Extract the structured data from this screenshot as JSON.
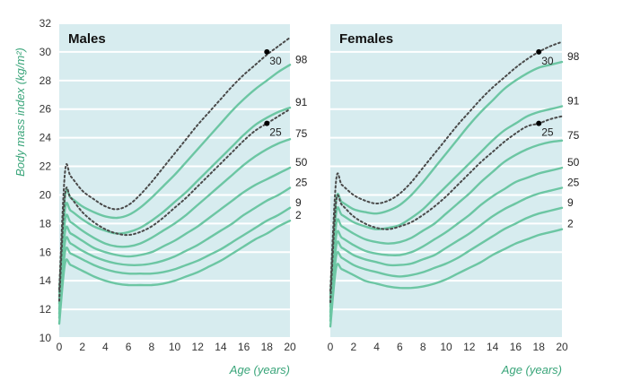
{
  "chart_data": {
    "type": "line",
    "ylabel": "Body mass index (kg/m²)",
    "ylim": [
      10,
      32
    ],
    "yticks": [
      "10",
      "12",
      "14",
      "16",
      "18",
      "20",
      "22",
      "24",
      "26",
      "28",
      "30",
      "32"
    ],
    "xlim": [
      0,
      20
    ],
    "grid": true,
    "colors": {
      "percentile": "#6cc6a3",
      "cutoff": "#4a4a4a",
      "background": "#d7ecef",
      "label": "#3aa57a"
    },
    "panels": [
      {
        "title": "Males",
        "xlabel": "Age (years)",
        "xticks": [
          "0",
          "2",
          "4",
          "6",
          "8",
          "10",
          "12",
          "14",
          "16",
          "18",
          "20"
        ],
        "x": [
          0,
          0.5,
          1,
          2,
          3,
          4,
          5,
          6,
          7,
          8,
          9,
          10,
          11,
          12,
          13,
          14,
          15,
          16,
          17,
          18,
          19,
          20
        ],
        "series": [
          {
            "name": "98",
            "values": [
              13.2,
              19.9,
              19.8,
              19.2,
              18.8,
              18.5,
              18.4,
              18.6,
              19.1,
              19.8,
              20.6,
              21.4,
              22.3,
              23.2,
              24.1,
              25.0,
              25.9,
              26.7,
              27.4,
              28.0,
              28.6,
              29.1
            ]
          },
          {
            "name": "91",
            "values": [
              12.8,
              19.0,
              18.9,
              18.3,
              17.8,
              17.5,
              17.3,
              17.4,
              17.7,
              18.2,
              18.8,
              19.5,
              20.2,
              21.0,
              21.8,
              22.6,
              23.4,
              24.2,
              24.9,
              25.4,
              25.8,
              26.1
            ]
          },
          {
            "name": "75",
            "values": [
              12.4,
              18.2,
              18.1,
              17.5,
              17.0,
              16.6,
              16.4,
              16.4,
              16.6,
              17.0,
              17.5,
              18.0,
              18.6,
              19.3,
              20.0,
              20.7,
              21.4,
              22.1,
              22.7,
              23.2,
              23.6,
              23.9
            ]
          },
          {
            "name": "50",
            "values": [
              12.0,
              17.4,
              17.3,
              16.8,
              16.3,
              16.0,
              15.8,
              15.7,
              15.8,
              16.0,
              16.4,
              16.8,
              17.3,
              17.8,
              18.4,
              19.0,
              19.6,
              20.2,
              20.7,
              21.1,
              21.5,
              21.9
            ]
          },
          {
            "name": "25",
            "values": [
              11.7,
              16.7,
              16.6,
              16.1,
              15.7,
              15.4,
              15.2,
              15.1,
              15.1,
              15.2,
              15.4,
              15.7,
              16.1,
              16.5,
              17.0,
              17.5,
              18.0,
              18.6,
              19.1,
              19.6,
              20.0,
              20.5
            ]
          },
          {
            "name": "9",
            "values": [
              11.4,
              16.0,
              15.9,
              15.5,
              15.1,
              14.8,
              14.6,
              14.5,
              14.5,
              14.5,
              14.6,
              14.8,
              15.1,
              15.4,
              15.8,
              16.2,
              16.7,
              17.2,
              17.7,
              18.2,
              18.6,
              19.1
            ]
          },
          {
            "name": "2",
            "values": [
              11.0,
              15.2,
              15.1,
              14.7,
              14.3,
              14.0,
              13.8,
              13.7,
              13.7,
              13.7,
              13.8,
              14.0,
              14.3,
              14.6,
              15.0,
              15.4,
              15.9,
              16.4,
              16.9,
              17.3,
              17.8,
              18.2
            ]
          }
        ],
        "cutoffs": [
          {
            "name": "30",
            "marker_x": 18,
            "marker_y": 30,
            "values": [
              13.4,
              21.6,
              21.3,
              20.3,
              19.7,
              19.2,
              19.0,
              19.3,
              20.0,
              20.9,
              21.9,
              22.9,
              23.9,
              24.9,
              25.8,
              26.7,
              27.6,
              28.4,
              29.1,
              29.8,
              30.4,
              31.0
            ]
          },
          {
            "name": "25",
            "marker_x": 18,
            "marker_y": 25,
            "values": [
              12.6,
              20.0,
              19.8,
              18.8,
              18.1,
              17.6,
              17.3,
              17.2,
              17.4,
              17.8,
              18.4,
              19.1,
              19.8,
              20.6,
              21.4,
              22.2,
              23.0,
              23.8,
              24.5,
              25.0,
              25.5,
              26.0
            ]
          }
        ],
        "label_order": [
          "98",
          "91",
          "75",
          "50",
          "25",
          "9",
          "2"
        ]
      },
      {
        "title": "Females",
        "xlabel": "Age (years)",
        "xticks": [
          "0",
          "2",
          "4",
          "6",
          "8",
          "10",
          "12",
          "14",
          "16",
          "18",
          "20"
        ],
        "x": [
          0,
          0.5,
          1,
          2,
          3,
          4,
          5,
          6,
          7,
          8,
          9,
          10,
          11,
          12,
          13,
          14,
          15,
          16,
          17,
          18,
          19,
          20
        ],
        "series": [
          {
            "name": "98",
            "values": [
              13.0,
              19.6,
              19.5,
              19.0,
              18.8,
              18.7,
              18.9,
              19.3,
              20.0,
              20.9,
              21.9,
              22.9,
              23.9,
              24.9,
              25.8,
              26.6,
              27.4,
              28.0,
              28.5,
              28.9,
              29.1,
              29.3
            ]
          },
          {
            "name": "91",
            "values": [
              12.6,
              18.7,
              18.6,
              18.1,
              17.8,
              17.6,
              17.7,
              17.9,
              18.4,
              19.0,
              19.8,
              20.6,
              21.4,
              22.2,
              23.0,
              23.8,
              24.5,
              25.0,
              25.5,
              25.8,
              26.0,
              26.2
            ]
          },
          {
            "name": "75",
            "values": [
              12.2,
              17.9,
              17.8,
              17.3,
              16.9,
              16.7,
              16.6,
              16.7,
              17.0,
              17.5,
              18.0,
              18.7,
              19.4,
              20.1,
              20.9,
              21.6,
              22.3,
              22.8,
              23.2,
              23.5,
              23.7,
              23.8
            ]
          },
          {
            "name": "50",
            "values": [
              11.8,
              17.1,
              17.0,
              16.5,
              16.1,
              15.9,
              15.8,
              15.8,
              16.0,
              16.4,
              16.9,
              17.4,
              18.0,
              18.6,
              19.3,
              19.9,
              20.4,
              20.9,
              21.2,
              21.5,
              21.7,
              21.9
            ]
          },
          {
            "name": "25",
            "values": [
              11.5,
              16.4,
              16.3,
              15.8,
              15.5,
              15.3,
              15.1,
              15.1,
              15.2,
              15.5,
              15.8,
              16.3,
              16.8,
              17.3,
              17.9,
              18.5,
              19.0,
              19.4,
              19.8,
              20.1,
              20.3,
              20.5
            ]
          },
          {
            "name": "9",
            "values": [
              11.2,
              15.7,
              15.6,
              15.1,
              14.8,
              14.6,
              14.4,
              14.3,
              14.4,
              14.6,
              14.9,
              15.2,
              15.6,
              16.1,
              16.6,
              17.1,
              17.6,
              18.0,
              18.4,
              18.7,
              18.9,
              19.1
            ]
          },
          {
            "name": "2",
            "values": [
              10.8,
              14.9,
              14.8,
              14.4,
              14.0,
              13.8,
              13.6,
              13.5,
              13.5,
              13.6,
              13.8,
              14.1,
              14.5,
              14.9,
              15.3,
              15.8,
              16.2,
              16.6,
              16.9,
              17.2,
              17.4,
              17.6
            ]
          }
        ],
        "cutoffs": [
          {
            "name": "30",
            "marker_x": 18,
            "marker_y": 30,
            "values": [
              13.3,
              21.0,
              20.7,
              20.0,
              19.6,
              19.4,
              19.6,
              20.1,
              20.9,
              21.9,
              22.9,
              23.9,
              24.9,
              25.8,
              26.7,
              27.5,
              28.2,
              28.9,
              29.5,
              30.0,
              30.4,
              30.7
            ]
          },
          {
            "name": "25",
            "marker_x": 18,
            "marker_y": 25,
            "values": [
              12.5,
              19.5,
              19.3,
              18.5,
              18.0,
              17.7,
              17.6,
              17.8,
              18.1,
              18.6,
              19.2,
              19.9,
              20.7,
              21.5,
              22.3,
              23.0,
              23.7,
              24.3,
              24.8,
              25.0,
              25.3,
              25.5
            ]
          }
        ],
        "label_order": [
          "98",
          "91",
          "75",
          "50",
          "25",
          "9",
          "2"
        ]
      }
    ]
  }
}
